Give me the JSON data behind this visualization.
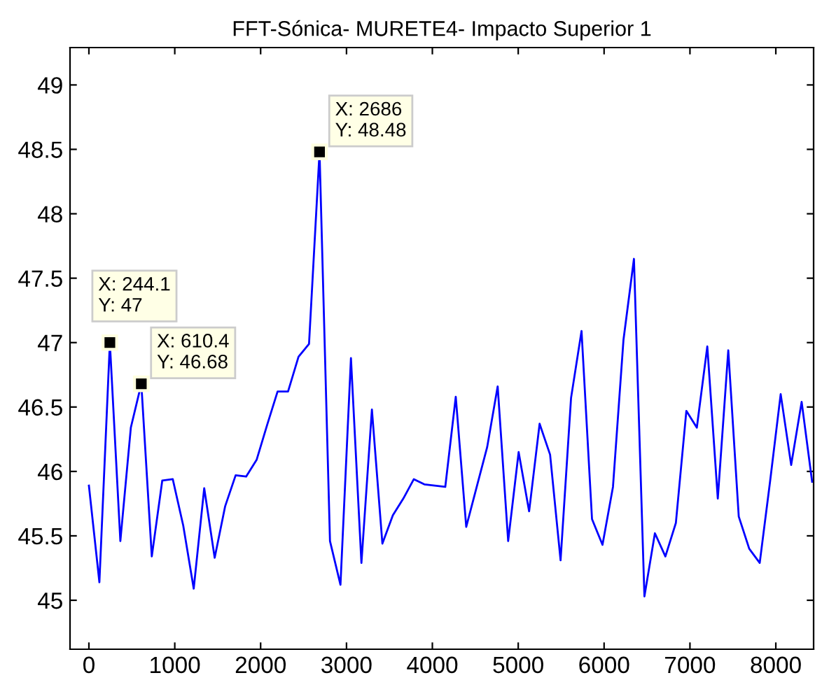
{
  "chart_data": {
    "type": "line",
    "title": "FFT-Sónica- MURETE4- Impacto Superior 1",
    "x": [
      0,
      122.1,
      244.1,
      366.2,
      488.3,
      610.4,
      732.4,
      854.5,
      976.6,
      1098.6,
      1220.7,
      1342.8,
      1464.8,
      1586.9,
      1709.0,
      1831.1,
      1953.1,
      2075.2,
      2197.3,
      2319.3,
      2441.4,
      2563.5,
      2686,
      2807.6,
      2929.7,
      3051.8,
      3173.8,
      3295.9,
      3418.0,
      3540.0,
      3662.1,
      3784.2,
      3906.3,
      4028.3,
      4150.4,
      4272.5,
      4394.5,
      4516.6,
      4638.7,
      4760.7,
      4882.8,
      5004.9,
      5127.0,
      5249.0,
      5371.1,
      5493.2,
      5615.2,
      5737.3,
      5859.4,
      5981.4,
      6103.5,
      6225.6,
      6347.7,
      6469.7,
      6591.8,
      6713.9,
      6835.9,
      6958.0,
      7080.1,
      7202.1,
      7324.2,
      7446.3,
      7568.4,
      7690.4,
      7812.5,
      7934.6,
      8056.6,
      8178.7,
      8300.8,
      8422.9
    ],
    "series": [
      {
        "color": "#0000ff",
        "values": [
          45.89,
          45.14,
          47,
          45.46,
          46.34,
          46.68,
          45.34,
          45.93,
          45.94,
          45.58,
          45.09,
          45.87,
          45.33,
          45.73,
          45.97,
          45.96,
          46.09,
          46.36,
          46.62,
          46.62,
          46.89,
          46.99,
          48.48,
          45.46,
          45.12,
          46.88,
          45.29,
          46.48,
          45.44,
          45.66,
          45.79,
          45.94,
          45.9,
          45.89,
          45.88,
          46.58,
          45.57,
          45.88,
          46.19,
          46.66,
          45.46,
          46.15,
          45.69,
          46.37,
          46.13,
          45.31,
          46.57,
          47.09,
          45.63,
          45.43,
          45.88,
          47.02,
          47.65,
          45.03,
          45.52,
          45.34,
          45.6,
          46.47,
          46.34,
          46.97,
          45.79,
          46.94,
          45.65,
          45.4,
          45.29,
          45.93,
          46.6,
          46.05,
          46.54,
          45.92
        ]
      }
    ],
    "xlim": [
      -220,
      8440
    ],
    "ylim": [
      44.62,
      49.29
    ],
    "xticks": [
      0,
      1000,
      2000,
      3000,
      4000,
      5000,
      6000,
      7000,
      8000
    ],
    "yticks": [
      45,
      45.5,
      46,
      46.5,
      47,
      47.5,
      48,
      48.5,
      49
    ],
    "grid": false,
    "legend": false,
    "marker": "none",
    "line_style": "solid",
    "annotations": [
      {
        "text": "X: 244.1\nY: 47",
        "x": 244.1,
        "y": 47
      },
      {
        "text": "X: 610.4\nY: 46.68",
        "x": 610.4,
        "y": 46.68
      },
      {
        "text": "X: 2686\nY: 48.48",
        "x": 2686,
        "y": 48.48
      }
    ]
  }
}
